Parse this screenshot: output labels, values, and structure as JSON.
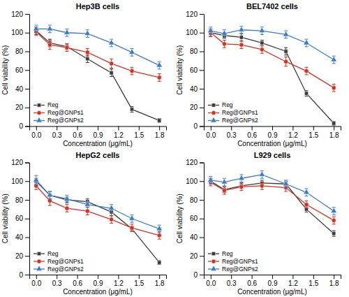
{
  "chart_data": [
    {
      "type": "line",
      "title": "Hep3B cells",
      "xlabel": "Concentration (μg/mL)",
      "ylabel": "Cell viability (%)",
      "x": [
        0.0,
        0.2,
        0.45,
        0.75,
        1.1,
        1.4,
        1.8
      ],
      "xlim": [
        -0.1,
        1.9
      ],
      "xticks": [
        {
          "value": 0.0,
          "label": "0.0"
        },
        0.3,
        0.6,
        0.9,
        1.2,
        1.5,
        1.8
      ],
      "ylim": [
        0,
        120
      ],
      "yticks": [
        0,
        20,
        40,
        60,
        80,
        100,
        120
      ],
      "legend": "lower left",
      "series": [
        {
          "name": "Reg",
          "color": "#3a3a3a",
          "marker": "square",
          "values": [
            102,
            89,
            85,
            72,
            57,
            18,
            6
          ],
          "errors": [
            4,
            4,
            3,
            4,
            4,
            3,
            2
          ]
        },
        {
          "name": "Reg@GNPs1",
          "color": "#d63020",
          "marker": "circle",
          "values": [
            101,
            87,
            84,
            79,
            67,
            59,
            52
          ],
          "errors": [
            4,
            5,
            4,
            4,
            5,
            4,
            4
          ]
        },
        {
          "name": "Reg@GNPs2",
          "color": "#3a7bc8",
          "marker": "triangle",
          "values": [
            104,
            104,
            100,
            99,
            89,
            79,
            65
          ],
          "errors": [
            4,
            4,
            4,
            4,
            4,
            4,
            4
          ]
        }
      ]
    },
    {
      "type": "line",
      "title": "BEL7402 cells",
      "xlabel": "Concentration (μg/mL)",
      "ylabel": "Cell viability (%)",
      "x": [
        0.0,
        0.2,
        0.45,
        0.75,
        1.1,
        1.4,
        1.8
      ],
      "xlim": [
        -0.1,
        1.9
      ],
      "xticks": [
        {
          "value": 0.0,
          "label": "0.0"
        },
        0.3,
        0.6,
        0.9,
        1.2,
        1.5,
        1.8
      ],
      "ylim": [
        0,
        120
      ],
      "yticks": [
        0,
        20,
        40,
        60,
        80,
        100,
        120
      ],
      "legend": "lower left",
      "series": [
        {
          "name": "Reg",
          "color": "#3a3a3a",
          "marker": "square",
          "values": [
            100,
            97,
            95,
            89,
            80,
            35,
            3
          ],
          "errors": [
            4,
            3,
            4,
            3,
            4,
            3,
            2
          ]
        },
        {
          "name": "Reg@GNPs1",
          "color": "#d63020",
          "marker": "circle",
          "values": [
            100,
            88,
            87,
            82,
            69,
            59,
            41
          ],
          "errors": [
            4,
            4,
            4,
            4,
            5,
            4,
            4
          ]
        },
        {
          "name": "Reg@GNPs2",
          "color": "#3a7bc8",
          "marker": "triangle",
          "values": [
            102,
            99,
            103,
            102,
            98,
            89,
            71
          ],
          "errors": [
            4,
            4,
            4,
            4,
            4,
            4,
            4
          ]
        }
      ]
    },
    {
      "type": "line",
      "title": "HepG2 cells",
      "xlabel": "Concentration (μg/mL)",
      "ylabel": "Cell viability (%)",
      "x": [
        0.0,
        0.2,
        0.45,
        0.75,
        1.1,
        1.4,
        1.8
      ],
      "xlim": [
        -0.1,
        1.9
      ],
      "xticks": [
        {
          "value": 0.0,
          "label": "0.0"
        },
        0.3,
        0.6,
        0.9,
        1.2,
        1.5,
        1.8
      ],
      "ylim": [
        0,
        120
      ],
      "yticks": [
        0,
        20,
        40,
        60,
        80,
        100,
        120
      ],
      "legend": "lower left",
      "series": [
        {
          "name": "Reg",
          "color": "#3a3a3a",
          "marker": "square",
          "values": [
            100,
            85,
            80,
            78,
            67,
            49,
            13
          ],
          "errors": [
            3,
            4,
            3,
            3,
            4,
            3,
            2
          ]
        },
        {
          "name": "Reg@GNPs1",
          "color": "#d63020",
          "marker": "circle",
          "values": [
            95,
            79,
            71,
            68,
            59,
            50,
            42
          ],
          "errors": [
            4,
            5,
            4,
            4,
            4,
            4,
            4
          ]
        },
        {
          "name": "Reg@GNPs2",
          "color": "#3a7bc8",
          "marker": "triangle",
          "values": [
            101,
            85,
            81,
            75,
            71,
            60,
            49
          ],
          "errors": [
            5,
            4,
            4,
            3,
            4,
            4,
            4
          ]
        }
      ]
    },
    {
      "type": "line",
      "title": "L929 cells",
      "xlabel": "Concentration (μg/mL)",
      "ylabel": "Cell viability (%)",
      "x": [
        0.0,
        0.2,
        0.45,
        0.75,
        1.1,
        1.4,
        1.8
      ],
      "xlim": [
        -0.1,
        1.9
      ],
      "xticks": [
        {
          "value": 0.0,
          "label": "0.0"
        },
        0.3,
        0.6,
        0.9,
        1.2,
        1.5,
        1.8
      ],
      "ylim": [
        0,
        120
      ],
      "yticks": [
        0,
        20,
        40,
        60,
        80,
        100,
        120
      ],
      "legend": "lower left",
      "series": [
        {
          "name": "Reg",
          "color": "#3a3a3a",
          "marker": "square",
          "values": [
            100,
            91,
            95,
            98,
            97,
            70,
            44
          ],
          "errors": [
            3,
            3,
            3,
            3,
            3,
            3,
            3
          ]
        },
        {
          "name": "Reg@GNPs1",
          "color": "#d63020",
          "marker": "circle",
          "values": [
            99,
            90,
            94,
            95,
            93,
            75,
            58
          ],
          "errors": [
            4,
            4,
            4,
            4,
            4,
            4,
            4
          ]
        },
        {
          "name": "Reg@GNPs2",
          "color": "#3a7bc8",
          "marker": "triangle",
          "values": [
            101,
            99,
            103,
            107,
            97,
            88,
            68
          ],
          "errors": [
            4,
            4,
            4,
            4,
            4,
            4,
            4
          ]
        }
      ]
    }
  ]
}
